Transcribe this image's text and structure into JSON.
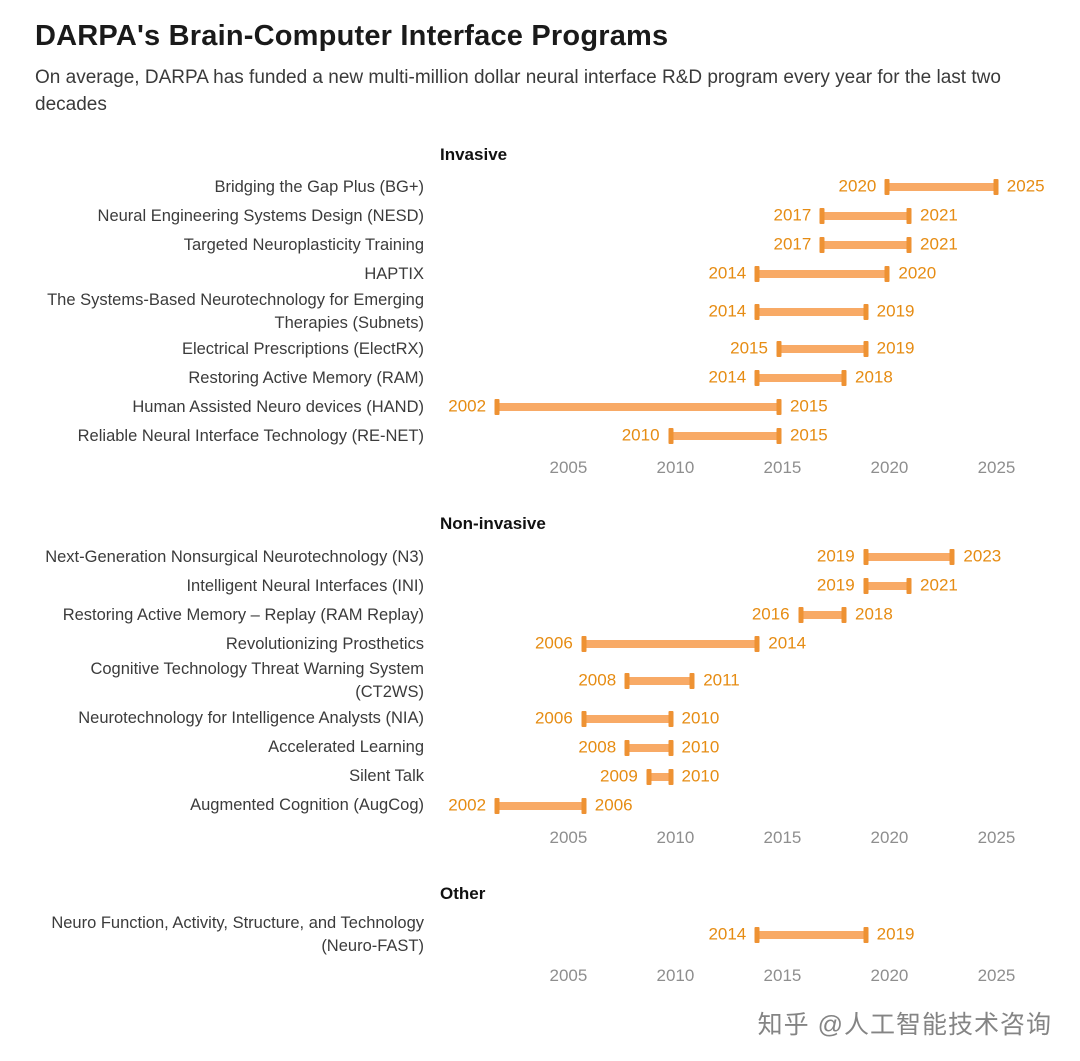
{
  "title": "DARPA's Brain-Computer Interface Programs",
  "subtitle": "On average, DARPA has funded a new multi-million dollar neural interface R&D program every year for the last two decades",
  "watermark": "知乎 @人工智能技术咨询",
  "colors": {
    "bar": "#f8aa66",
    "cap": "#ee9233",
    "year_label": "#e68c13",
    "axis_text": "#8e8e8e",
    "row_label": "#3b3b3b"
  },
  "chart_data": {
    "type": "bar",
    "subtype": "horizontal-range-timeline (gantt)",
    "title": "DARPA's Brain-Computer Interface Programs",
    "xlabel": "",
    "ylabel": "",
    "x_domain": [
      1999,
      2027.5
    ],
    "x_ticks": [
      2005,
      2010,
      2015,
      2020,
      2025
    ],
    "grid": false,
    "legend": "none",
    "panels": [
      {
        "title": "Invasive",
        "rows": [
          {
            "label": "Bridging the Gap Plus (BG+)",
            "start": 2020,
            "end": 2025
          },
          {
            "label": "Neural Engineering Systems Design (NESD)",
            "start": 2017,
            "end": 2021
          },
          {
            "label": "Targeted Neuroplasticity Training",
            "start": 2017,
            "end": 2021
          },
          {
            "label": "HAPTIX",
            "start": 2014,
            "end": 2020
          },
          {
            "label": "The Systems-Based Neurotechnology for Emerging Therapies (Subnets)",
            "start": 2014,
            "end": 2019
          },
          {
            "label": "Electrical Prescriptions (ElectRX)",
            "start": 2015,
            "end": 2019
          },
          {
            "label": "Restoring Active Memory (RAM)",
            "start": 2014,
            "end": 2018
          },
          {
            "label": "Human Assisted Neuro devices (HAND)",
            "start": 2002,
            "end": 2015
          },
          {
            "label": "Reliable Neural Interface Technology (RE-NET)",
            "start": 2010,
            "end": 2015
          }
        ]
      },
      {
        "title": "Non-invasive",
        "rows": [
          {
            "label": "Next-Generation Nonsurgical Neurotechnology (N3)",
            "start": 2019,
            "end": 2023
          },
          {
            "label": "Intelligent Neural Interfaces (INI)",
            "start": 2019,
            "end": 2021
          },
          {
            "label": "Restoring Active Memory – Replay (RAM Replay)",
            "start": 2016,
            "end": 2018
          },
          {
            "label": "Revolutionizing Prosthetics",
            "start": 2006,
            "end": 2014
          },
          {
            "label": "Cognitive Technology Threat Warning System (CT2WS)",
            "start": 2008,
            "end": 2011
          },
          {
            "label": "Neurotechnology for Intelligence Analysts (NIA)",
            "start": 2006,
            "end": 2010
          },
          {
            "label": "Accelerated Learning",
            "start": 2008,
            "end": 2010
          },
          {
            "label": "Silent Talk",
            "start": 2009,
            "end": 2010
          },
          {
            "label": "Augmented Cognition (AugCog)",
            "start": 2002,
            "end": 2006
          }
        ]
      },
      {
        "title": "Other",
        "rows": [
          {
            "label": "Neuro Function, Activity, Structure, and Technology (Neuro-FAST)",
            "start": 2014,
            "end": 2019
          }
        ]
      }
    ]
  }
}
